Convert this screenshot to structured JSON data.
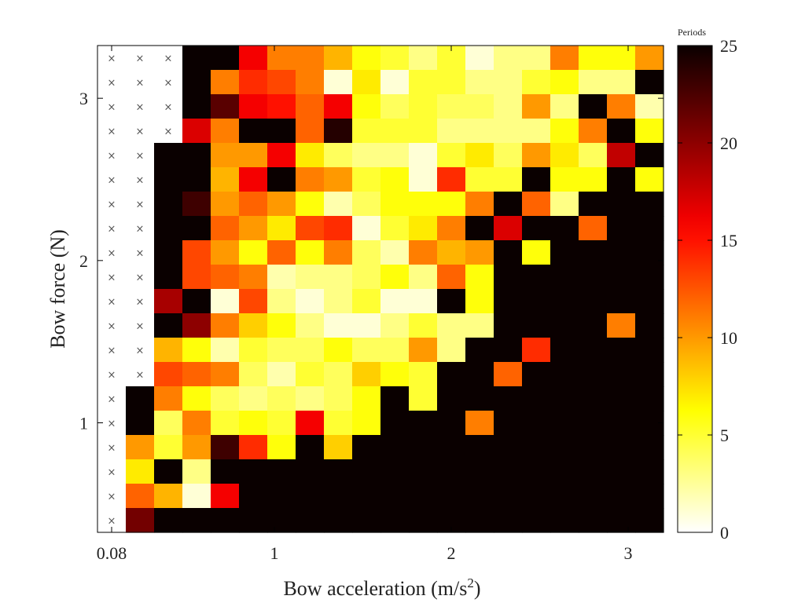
{
  "chart_data": {
    "type": "heatmap",
    "xlabel": "Bow acceleration (m/s",
    "xlabel_sup": "2",
    "xlabel_tail": ")",
    "ylabel": "Bow force (N)",
    "colorbar_title": "Periods",
    "colormap": "reverse-hot",
    "color_range": [
      0,
      25
    ],
    "colorbar_ticks": [
      "0",
      "5",
      "10",
      "15",
      "20",
      "25"
    ],
    "x_ticks": [
      {
        "value": 0.08,
        "label": "0.08"
      },
      {
        "value": 1,
        "label": "1"
      },
      {
        "value": 2,
        "label": "2"
      },
      {
        "value": 3,
        "label": "3"
      }
    ],
    "y_ticks": [
      {
        "value": 1,
        "label": "1"
      },
      {
        "value": 2,
        "label": "2"
      },
      {
        "value": 3,
        "label": "3"
      }
    ],
    "x": [
      0.08,
      0.24,
      0.4,
      0.56,
      0.72,
      0.88,
      1.04,
      1.2,
      1.36,
      1.52,
      1.68,
      1.84,
      2.0,
      2.16,
      2.32,
      2.48,
      2.64,
      2.8,
      2.96,
      3.12
    ],
    "y": [
      0.4,
      0.55,
      0.7,
      0.85,
      1.0,
      1.15,
      1.3,
      1.45,
      1.6,
      1.75,
      1.9,
      2.05,
      2.2,
      2.35,
      2.5,
      2.65,
      2.8,
      2.95,
      3.1,
      3.25
    ],
    "xlim": [
      0.0,
      3.2
    ],
    "ylim": [
      0.325,
      3.325
    ],
    "missing_marker": "×",
    "values_note": "rows ordered top (largest force) to bottom; null = not tested (×)",
    "values": [
      [
        null,
        null,
        null,
        25,
        25,
        16,
        11,
        11,
        9,
        6,
        5,
        3,
        5,
        1,
        3,
        3,
        11,
        6,
        6,
        10
      ],
      [
        null,
        null,
        null,
        25,
        11,
        14,
        13,
        11,
        1,
        7,
        1,
        5,
        5,
        3,
        3,
        5,
        6,
        3,
        3,
        25
      ],
      [
        null,
        null,
        null,
        25,
        22,
        16,
        15,
        12,
        16,
        6,
        4,
        5,
        4,
        4,
        3,
        10,
        3,
        25,
        11,
        2
      ],
      [
        null,
        null,
        null,
        17,
        11,
        25,
        25,
        12,
        24,
        5,
        5,
        5,
        3,
        3,
        3,
        3,
        6,
        11,
        25,
        6
      ],
      [
        null,
        null,
        25,
        25,
        10,
        10,
        16,
        7,
        4,
        3,
        3,
        1,
        5,
        7,
        4,
        10,
        7,
        4,
        18,
        25
      ],
      [
        null,
        null,
        25,
        25,
        9,
        16,
        25,
        11,
        10,
        5,
        6,
        1,
        14,
        5,
        5,
        25,
        6,
        6,
        25,
        6
      ],
      [
        null,
        null,
        25,
        23,
        10,
        12,
        10,
        6,
        2,
        4,
        6,
        6,
        6,
        11,
        25,
        12,
        3,
        25,
        25,
        25
      ],
      [
        null,
        null,
        25,
        25,
        12,
        10,
        7,
        13,
        14,
        1,
        5,
        7,
        11,
        25,
        17,
        25,
        25,
        12,
        25,
        25
      ],
      [
        null,
        null,
        25,
        13,
        10,
        6,
        12,
        6,
        11,
        4,
        2,
        11,
        9,
        10,
        25,
        6,
        25,
        25,
        25,
        25
      ],
      [
        null,
        null,
        25,
        13,
        12,
        11,
        2,
        3,
        3,
        4,
        6,
        3,
        12,
        6,
        25,
        25,
        25,
        25,
        25,
        25
      ],
      [
        null,
        null,
        19,
        25,
        1,
        13,
        3,
        1,
        3,
        5,
        1,
        1,
        25,
        6,
        25,
        25,
        25,
        25,
        25,
        25
      ],
      [
        null,
        null,
        25,
        20,
        11,
        8,
        6,
        3,
        1,
        1,
        3,
        5,
        3,
        3,
        25,
        25,
        25,
        25,
        11,
        25
      ],
      [
        null,
        null,
        9,
        6,
        2,
        5,
        4,
        4,
        6,
        4,
        4,
        10,
        3,
        25,
        25,
        14,
        25,
        25,
        25,
        25
      ],
      [
        null,
        null,
        13,
        12,
        11,
        4,
        2,
        5,
        4,
        8,
        6,
        5,
        25,
        25,
        12,
        25,
        25,
        25,
        25,
        25
      ],
      [
        null,
        25,
        11,
        6,
        4,
        3,
        4,
        3,
        4,
        6,
        25,
        5,
        25,
        25,
        25,
        25,
        25,
        25,
        25,
        25
      ],
      [
        null,
        25,
        4,
        11,
        5,
        6,
        5,
        16,
        5,
        6,
        25,
        25,
        25,
        11,
        25,
        25,
        25,
        25,
        25,
        25
      ],
      [
        null,
        10,
        5,
        10,
        23,
        14,
        6,
        25,
        8,
        25,
        25,
        25,
        25,
        25,
        25,
        25,
        25,
        25,
        25,
        25
      ],
      [
        null,
        7,
        25,
        3,
        25,
        25,
        25,
        25,
        25,
        25,
        25,
        25,
        25,
        25,
        25,
        25,
        25,
        25,
        25,
        25
      ],
      [
        null,
        12,
        9,
        1,
        16,
        25,
        25,
        25,
        25,
        25,
        25,
        25,
        25,
        25,
        25,
        25,
        25,
        25,
        25,
        25
      ],
      [
        null,
        21,
        25,
        25,
        25,
        25,
        25,
        25,
        25,
        25,
        25,
        25,
        25,
        25,
        25,
        25,
        25,
        25,
        25,
        25
      ]
    ],
    "legend": "colorbar-right",
    "grid": false
  }
}
